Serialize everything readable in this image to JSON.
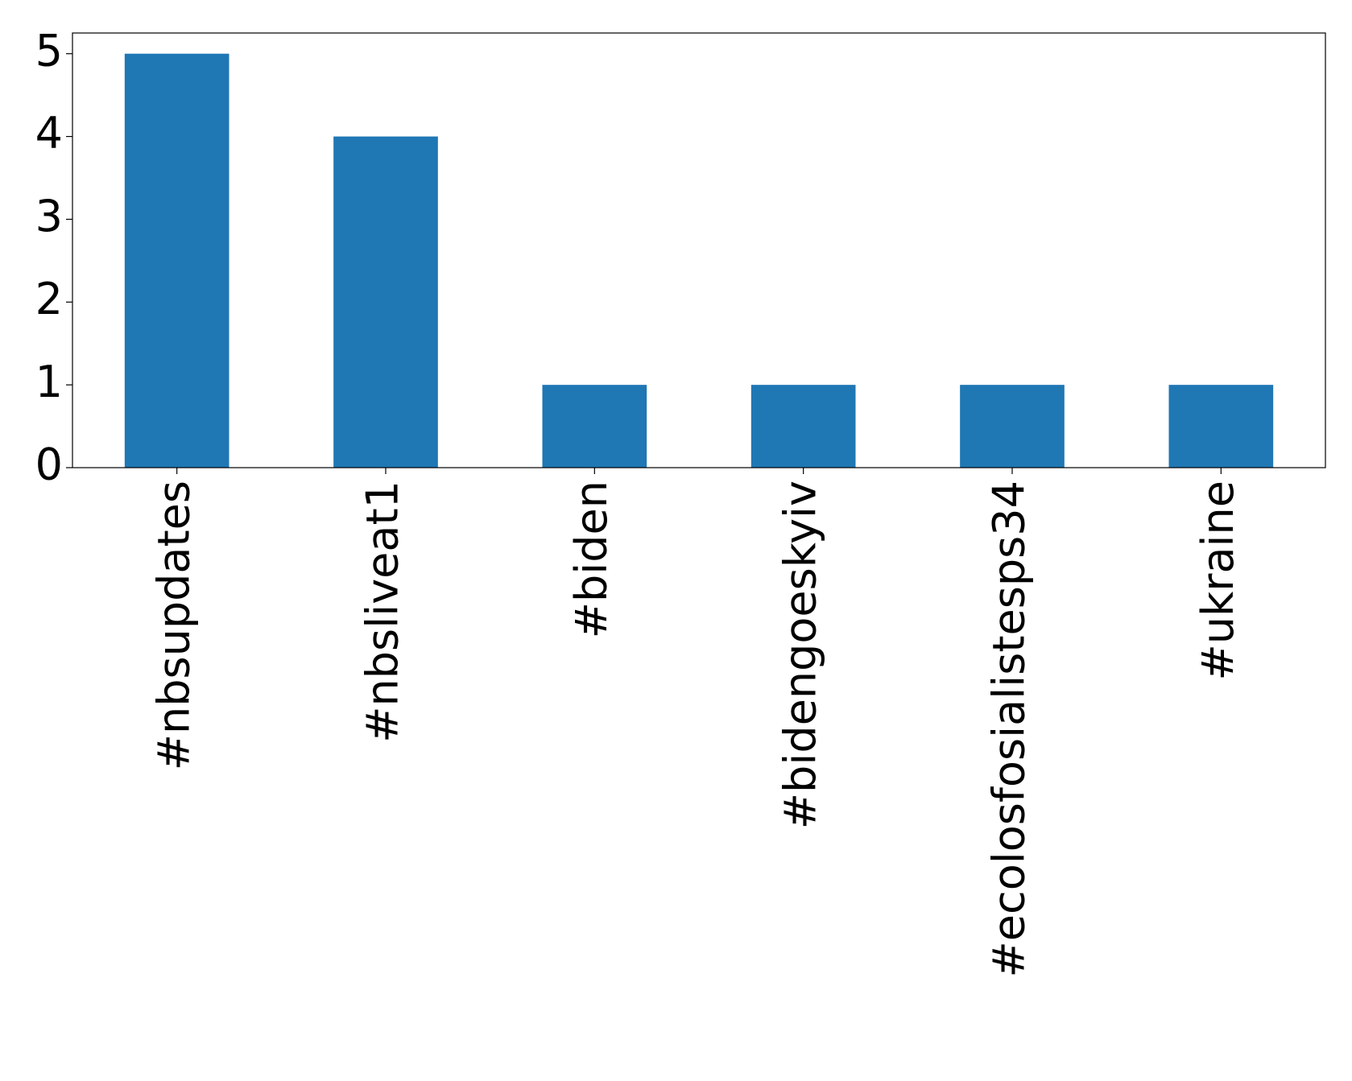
{
  "chart_data": {
    "type": "bar",
    "categories": [
      "#nbsupdates",
      "#nbsliveat1",
      "#biden",
      "#bidengoeskyiv",
      "#ecolosfosialistesps34",
      "#ukraine"
    ],
    "values": [
      5,
      4,
      1,
      1,
      1,
      1
    ],
    "color": "#1f77b4",
    "ylim": [
      0,
      5.25
    ],
    "yticks": [
      0,
      1,
      2,
      3,
      4,
      5
    ],
    "grid": false
  }
}
